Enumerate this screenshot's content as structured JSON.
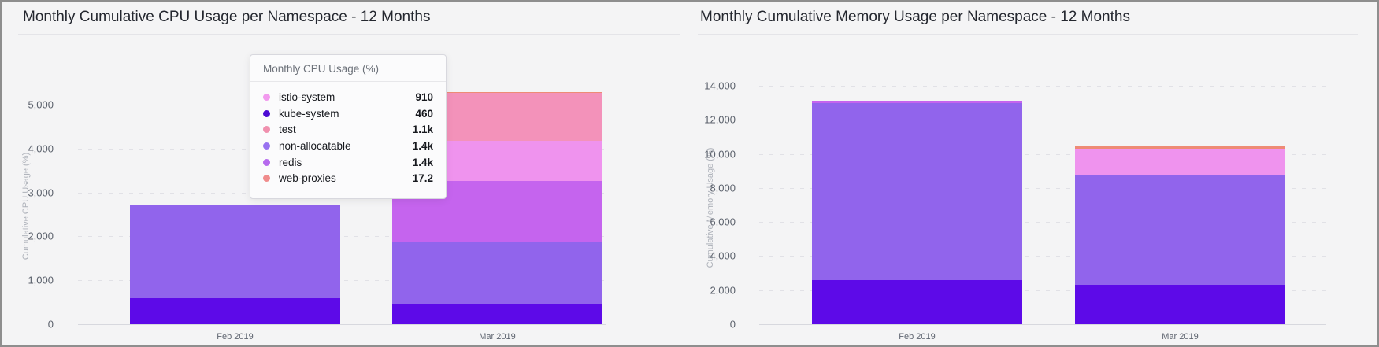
{
  "page": {
    "background": "#f4f4f5",
    "border_color": "#8e8e8e"
  },
  "tooltip": {
    "title": "Monthly CPU Usage (%)",
    "rows": [
      {
        "name": "istio-system",
        "value": "910",
        "color": "#f29aee"
      },
      {
        "name": "kube-system",
        "value": "460",
        "color": "#4c0ad4"
      },
      {
        "name": "test",
        "value": "1.1k",
        "color": "#f090ae"
      },
      {
        "name": "non-allocatable",
        "value": "1.4k",
        "color": "#9872f0"
      },
      {
        "name": "redis",
        "value": "1.4k",
        "color": "#b66aee"
      },
      {
        "name": "web-proxies",
        "value": "17.2",
        "color": "#f08c8c"
      }
    ]
  },
  "chart_data": [
    {
      "type": "bar",
      "stacked": true,
      "title": "Monthly Cumulative CPU Usage per Namespace - 12 Months",
      "ylabel": "Cumulative CPU Usage (%)",
      "xlabel": "",
      "ylim": [
        0,
        5000
      ],
      "y_ticks": [
        "0",
        "1,000",
        "2,000",
        "3,000",
        "4,000",
        "5,000"
      ],
      "grid": true,
      "categories": [
        "Feb 2019",
        "Mar 2019"
      ],
      "series": [
        {
          "name": "kube-system",
          "values": [
            600,
            460
          ],
          "color": "#5d0ae8"
        },
        {
          "name": "non-allocatable",
          "values": [
            2100,
            1400
          ],
          "color": "#9164ec"
        },
        {
          "name": "redis",
          "values": [
            0,
            1400
          ],
          "color": "#c564ee"
        },
        {
          "name": "istio-system",
          "values": [
            0,
            910
          ],
          "color": "#ef93ee"
        },
        {
          "name": "test",
          "values": [
            0,
            1100
          ],
          "color": "#f392ba"
        },
        {
          "name": "web-proxies",
          "values": [
            0,
            17.2
          ],
          "color": "#ee8b75"
        }
      ]
    },
    {
      "type": "bar",
      "stacked": true,
      "title": "Monthly Cumulative Memory Usage per Namespace - 12 Months",
      "ylabel": "Cumulative Memory Usage (%)",
      "xlabel": "",
      "ylim": [
        0,
        14000
      ],
      "y_ticks": [
        "0",
        "2,000",
        "4,000",
        "6,000",
        "8,000",
        "10,000",
        "12,000",
        "14,000"
      ],
      "grid": true,
      "categories": [
        "Feb 2019",
        "Mar 2019"
      ],
      "series": [
        {
          "name": "kube-system",
          "values": [
            2600,
            2300
          ],
          "color": "#5d0ae8"
        },
        {
          "name": "non-allocatable",
          "values": [
            10400,
            6500
          ],
          "color": "#9164ec"
        },
        {
          "name": "redis",
          "values": [
            120,
            0
          ],
          "color": "#c564ee"
        },
        {
          "name": "istio-system",
          "values": [
            0,
            1500
          ],
          "color": "#ef93ee"
        },
        {
          "name": "web-proxies",
          "values": [
            0,
            120
          ],
          "color": "#ee8b75"
        }
      ]
    }
  ]
}
